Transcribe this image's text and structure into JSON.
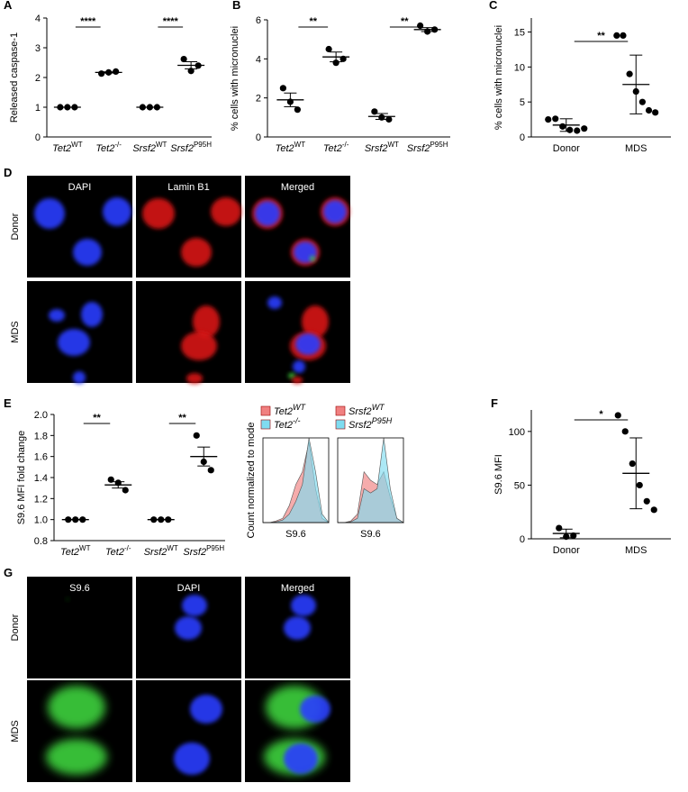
{
  "chart_data": [
    {
      "type": "dot",
      "panel_label": "A",
      "y_label": "Released caspase-1",
      "categories": [
        "Tet2",
        "Tet2",
        "Srsf2",
        "Srsf2"
      ],
      "category_superscripts": [
        "WT",
        "-/-",
        "WT",
        "P95H"
      ],
      "values": [
        [
          1,
          1,
          1
        ],
        [
          2.13,
          2.17,
          2.2
        ],
        [
          1,
          1,
          1
        ],
        [
          2.62,
          2.22,
          2.4
        ]
      ],
      "means": [
        1,
        2.17,
        1,
        2.41
      ],
      "errors": [
        0,
        0.02,
        0,
        0.12
      ],
      "ylim": [
        0,
        4
      ],
      "yticks": [
        0,
        1,
        2,
        3,
        4
      ],
      "significance_labels": [
        "****",
        "****"
      ],
      "color": "#000000"
    },
    {
      "type": "dot",
      "panel_label": "B",
      "y_label": "% cells with micronuclei",
      "categories": [
        "Tet2",
        "Tet2",
        "Srsf2",
        "Srsf2"
      ],
      "category_superscripts": [
        "WT",
        "-/-",
        "WT",
        "P95H"
      ],
      "values": [
        [
          2.5,
          1.8,
          1.4
        ],
        [
          4.5,
          3.8,
          4.0
        ],
        [
          1.3,
          1.0,
          0.9
        ],
        [
          5.7,
          5.4,
          5.5
        ]
      ],
      "means": [
        1.9,
        4.1,
        1.05,
        5.5
      ],
      "errors": [
        0.35,
        0.25,
        0.15,
        0.1
      ],
      "ylim": [
        0,
        6
      ],
      "yticks": [
        0,
        2,
        4,
        6
      ],
      "significance_labels": [
        "**",
        "**"
      ],
      "color": "#000000"
    },
    {
      "type": "dot",
      "panel_label": "C",
      "y_label": "% cells with micronuclei",
      "categories": [
        "Donor",
        "MDS"
      ],
      "values": [
        [
          2.5,
          2.6,
          1.5,
          1.0,
          0.9,
          1.2
        ],
        [
          14.5,
          14.5,
          9.0,
          6.5,
          5.0,
          3.8,
          3.5
        ]
      ],
      "means": [
        1.7,
        7.5
      ],
      "errors": [
        0.9,
        4.2
      ],
      "ylim": [
        0,
        17
      ],
      "yticks": [
        0,
        5,
        10,
        15
      ],
      "significance_labels": [
        "**"
      ],
      "color": "#000000"
    },
    {
      "type": "dot",
      "panel_label": "E",
      "y_label": "S9.6 MFI fold change",
      "categories": [
        "Tet2",
        "Tet2",
        "Srsf2",
        "Srsf2"
      ],
      "category_superscripts": [
        "WT",
        "-/-",
        "WT",
        "P95H"
      ],
      "values": [
        [
          1,
          1,
          1
        ],
        [
          1.38,
          1.35,
          1.28
        ],
        [
          1,
          1,
          1
        ],
        [
          1.8,
          1.55,
          1.47
        ]
      ],
      "means": [
        1,
        1.33,
        1,
        1.6
      ],
      "errors": [
        0,
        0.03,
        0,
        0.09
      ],
      "ylim": [
        0.8,
        2.0
      ],
      "yticks": [
        0.8,
        {
          "value": 1,
          "label": "1.0"
        },
        1.2,
        1.4,
        1.6,
        1.8,
        {
          "value": 2,
          "label": "2.0"
        }
      ],
      "significance_labels": [
        "**",
        "**"
      ],
      "color": "#000000"
    },
    {
      "type": "area",
      "y_label": "Count normalized to mode",
      "x_label": "S9.6",
      "legend": "top",
      "x": [
        0,
        1,
        2,
        3,
        4,
        5,
        6,
        7,
        8,
        9,
        10
      ],
      "xlim": [
        0,
        10
      ],
      "ylim": [
        0,
        100
      ],
      "series": [
        {
          "name": "Tet2",
          "name_superscript": "WT",
          "color": "#f08080",
          "values": [
            0,
            0,
            2,
            5,
            20,
            45,
            60,
            95,
            40,
            5,
            0
          ]
        },
        {
          "name": "Tet2",
          "name_superscript": "-/-",
          "color": "#7fdcf0",
          "values": [
            0,
            0,
            1,
            3,
            10,
            25,
            45,
            100,
            60,
            10,
            0
          ]
        }
      ]
    },
    {
      "type": "area",
      "x_label": "S9.6",
      "legend": "top",
      "x": [
        0,
        1,
        2,
        3,
        4,
        5,
        6,
        7,
        8,
        9,
        10
      ],
      "xlim": [
        0,
        10
      ],
      "ylim": [
        0,
        100
      ],
      "series": [
        {
          "name": "Srsf2",
          "name_superscript": "WT",
          "color": "#f08080",
          "values": [
            0,
            0,
            2,
            10,
            60,
            50,
            45,
            60,
            30,
            5,
            0
          ]
        },
        {
          "name": "Srsf2",
          "name_superscript": "P95H",
          "color": "#7fdcf0",
          "values": [
            0,
            0,
            1,
            5,
            40,
            35,
            40,
            100,
            40,
            5,
            0
          ]
        }
      ]
    },
    {
      "type": "dot",
      "panel_label": "F",
      "y_label": "S9.6 MFI",
      "categories": [
        "Donor",
        "MDS"
      ],
      "values": [
        [
          10,
          2,
          3
        ],
        [
          115,
          100,
          70,
          50,
          35,
          27
        ]
      ],
      "means": [
        5,
        61
      ],
      "errors": [
        4,
        33
      ],
      "ylim": [
        0,
        120
      ],
      "yticks": [
        0,
        50,
        100
      ],
      "significance_labels": [
        "*"
      ],
      "color": "#000000"
    }
  ],
  "image_panels": [
    {
      "panel_label": "D",
      "columns": [
        "DAPI",
        "Lamin B1",
        "Merged"
      ],
      "rows": [
        "Donor",
        "MDS"
      ]
    },
    {
      "panel_label": "G",
      "columns": [
        "S9.6",
        "DAPI",
        "Merged"
      ],
      "rows": [
        "Donor",
        "MDS"
      ]
    }
  ]
}
